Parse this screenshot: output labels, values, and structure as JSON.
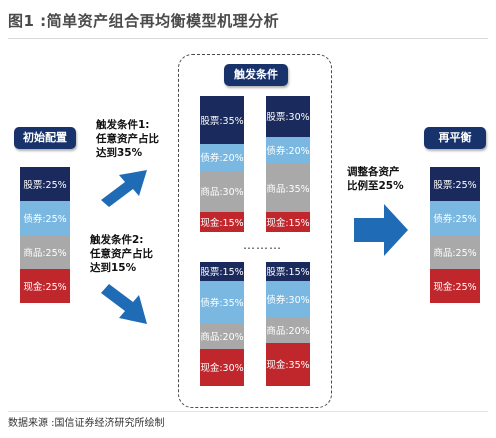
{
  "title": "图1 :简单资产组合再均衡模型机理分析",
  "labels": {
    "initial": "初始配置",
    "trigger": "触发条件",
    "rebalance": "再平衡"
  },
  "conditions": {
    "c1_line1": "触发条件1:",
    "c1_line2": "任意资产占比",
    "c1_line3": "达到35%",
    "c2_line1": "触发条件2:",
    "c2_line2": "任意资产占比",
    "c2_line3": "达到15%",
    "adjust_line1": "调整各资产",
    "adjust_line2": "比例至25%"
  },
  "ellipsis": "………",
  "source": "数据来源 :国信证券经济研究所绘制",
  "colors": {
    "stock": "#1b2a5c",
    "bond": "#7ab8e2",
    "commodity": "#a9a9a9",
    "cash": "#c0272d",
    "label_bg": "#18336b",
    "arrow": "#1f6bb5"
  },
  "stacks": {
    "initial": [
      {
        "type": "stock",
        "label": "股票:25%",
        "pct": 25
      },
      {
        "type": "bond",
        "label": "债券:25%",
        "pct": 25
      },
      {
        "type": "comm",
        "label": "商品:25%",
        "pct": 25
      },
      {
        "type": "cash",
        "label": "现金:25%",
        "pct": 25
      }
    ],
    "t1_left": [
      {
        "type": "stock",
        "label": "股票:35%",
        "pct": 35
      },
      {
        "type": "bond",
        "label": "债券:20%",
        "pct": 20
      },
      {
        "type": "comm",
        "label": "商品:30%",
        "pct": 30
      },
      {
        "type": "cash",
        "label": "现金:15%",
        "pct": 15
      }
    ],
    "t1_right": [
      {
        "type": "stock",
        "label": "股票:30%",
        "pct": 30
      },
      {
        "type": "bond",
        "label": "债券:20%",
        "pct": 20
      },
      {
        "type": "comm",
        "label": "商品:35%",
        "pct": 35
      },
      {
        "type": "cash",
        "label": "现金:15%",
        "pct": 15
      }
    ],
    "t2_left": [
      {
        "type": "stock",
        "label": "股票:15%",
        "pct": 15
      },
      {
        "type": "bond",
        "label": "债券:35%",
        "pct": 35
      },
      {
        "type": "comm",
        "label": "商品:20%",
        "pct": 20
      },
      {
        "type": "cash",
        "label": "现金:30%",
        "pct": 30
      }
    ],
    "t2_right": [
      {
        "type": "stock",
        "label": "股票:15%",
        "pct": 15
      },
      {
        "type": "bond",
        "label": "债券:30%",
        "pct": 30
      },
      {
        "type": "comm",
        "label": "商品:20%",
        "pct": 20
      },
      {
        "type": "cash",
        "label": "现金:35%",
        "pct": 35
      }
    ],
    "final": [
      {
        "type": "stock",
        "label": "股票:25%",
        "pct": 25
      },
      {
        "type": "bond",
        "label": "债券:25%",
        "pct": 25
      },
      {
        "type": "comm",
        "label": "商品:25%",
        "pct": 25
      },
      {
        "type": "cash",
        "label": "现金:25%",
        "pct": 25
      }
    ]
  }
}
